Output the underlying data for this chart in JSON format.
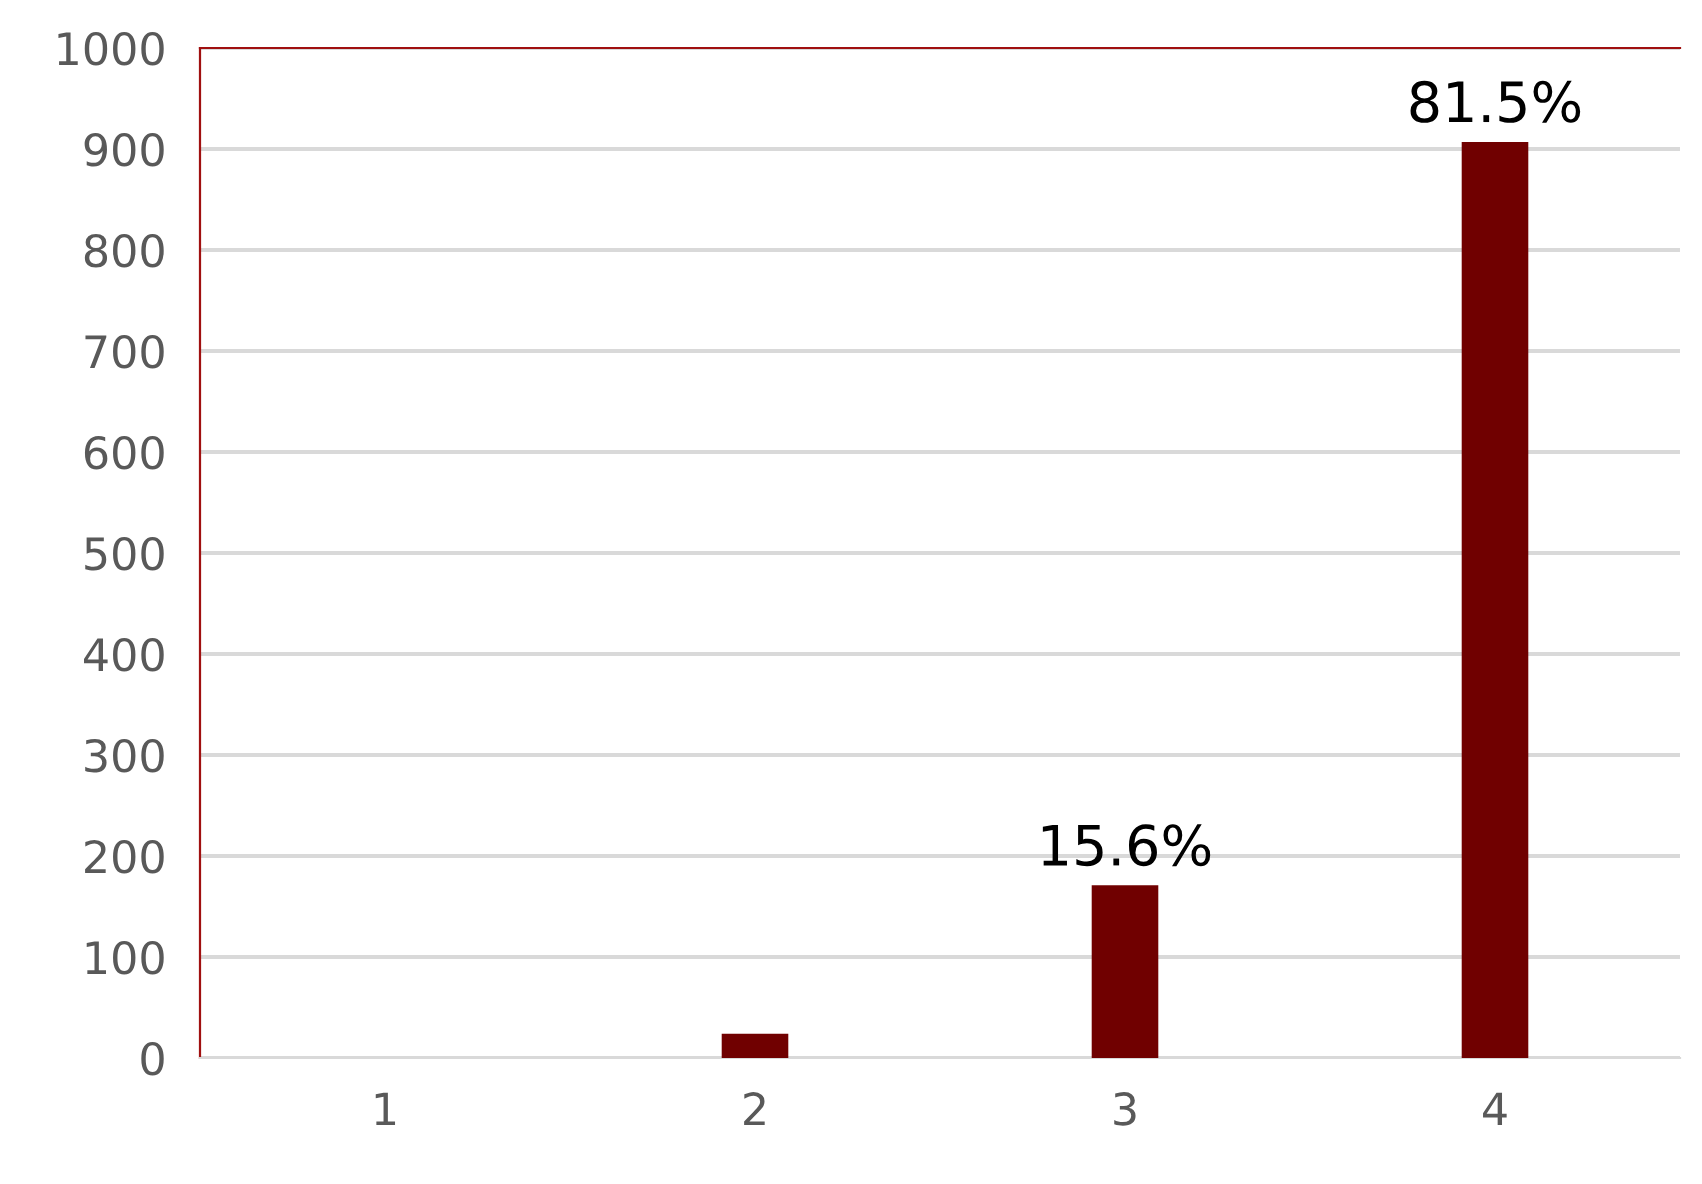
{
  "chart_data": {
    "type": "bar",
    "categories": [
      "1",
      "2",
      "3",
      "4"
    ],
    "values": [
      0,
      24,
      171,
      907
    ],
    "annotations": [
      {
        "text": "15.6%",
        "x": "3",
        "y": 171
      },
      {
        "text": "81.5%",
        "x": "4",
        "y": 907
      }
    ],
    "color": "#700000",
    "ylim": [
      0,
      1000
    ],
    "yticks": [
      0,
      100,
      200,
      300,
      400,
      500,
      600,
      700,
      800,
      900,
      1000
    ],
    "grid": "y"
  }
}
